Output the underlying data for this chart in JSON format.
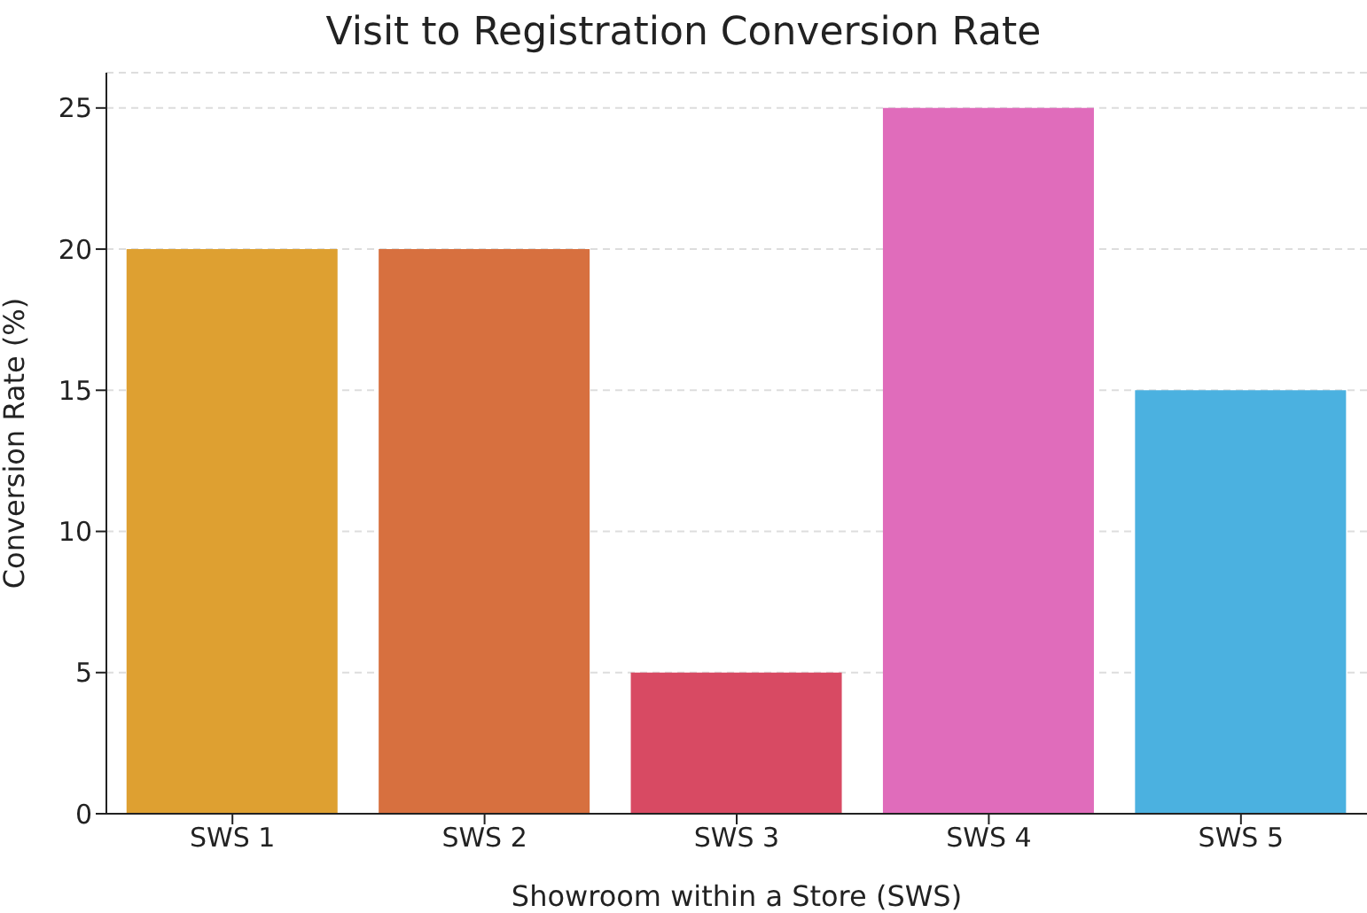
{
  "chart_data": {
    "type": "bar",
    "title": "Visit to Registration Conversion Rate",
    "xlabel": "Showroom within a Store (SWS)",
    "ylabel": "Conversion Rate (%)",
    "categories": [
      "SWS 1",
      "SWS 2",
      "SWS 3",
      "SWS 4",
      "SWS 5"
    ],
    "values": [
      20,
      20,
      5,
      25,
      15
    ],
    "colors": [
      "#dea031",
      "#d7703f",
      "#d84a63",
      "#e06cbb",
      "#4bb1e0"
    ],
    "ylim": [
      0,
      26.25
    ],
    "yticks": [
      0,
      5,
      10,
      15,
      20,
      25
    ],
    "grid": "y"
  }
}
